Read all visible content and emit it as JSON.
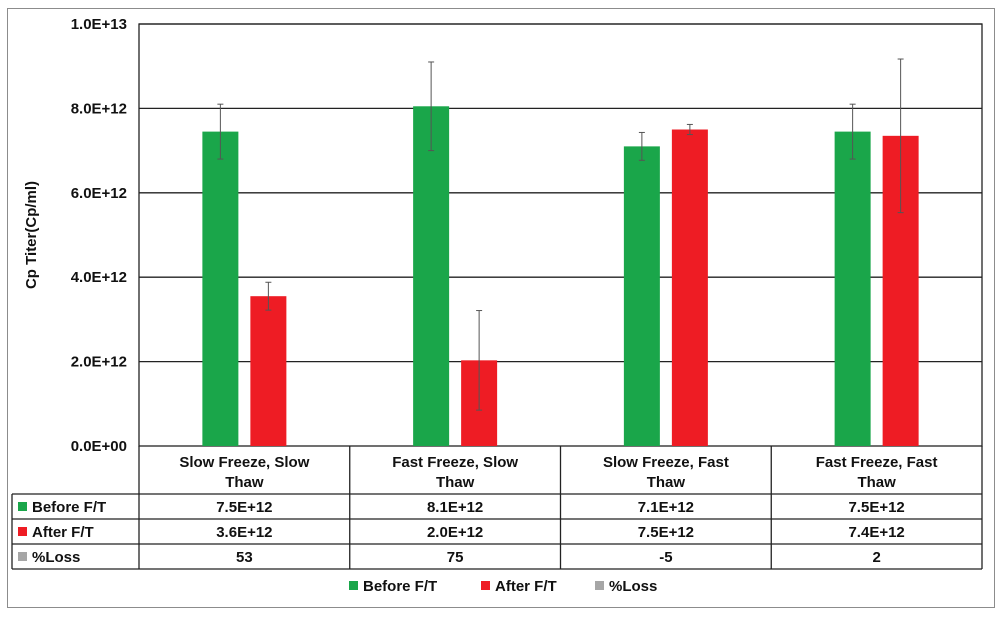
{
  "chart_data": {
    "type": "bar",
    "ylabel": "Cp Titer(Cp/ml)",
    "ylim": [
      0,
      10000000000000
    ],
    "yticks": [
      "0.0E+00",
      "2.0E+12",
      "4.0E+12",
      "6.0E+12",
      "8.0E+12",
      "1.0E+13"
    ],
    "ytick_values": [
      0,
      2000000000000,
      4000000000000,
      6000000000000,
      8000000000000,
      10000000000000
    ],
    "grid": true,
    "legend_position": "bottom",
    "categories": [
      [
        "Slow Freeze, Slow",
        "Thaw"
      ],
      [
        "Fast Freeze, Slow",
        "Thaw"
      ],
      [
        "Slow Freeze, Fast",
        "Thaw"
      ],
      [
        "Fast Freeze, Fast",
        "Thaw"
      ]
    ],
    "series": [
      {
        "name": "Before F/T",
        "color": "#1aa64a",
        "values": [
          7450000000000,
          8050000000000,
          7100000000000,
          7450000000000
        ],
        "errors": [
          650000000000,
          1050000000000,
          330000000000,
          650000000000
        ],
        "labels": [
          "7.5E+12",
          "8.1E+12",
          "7.1E+12",
          "7.5E+12"
        ]
      },
      {
        "name": "After F/T",
        "color": "#ee1c24",
        "values": [
          3550000000000,
          2030000000000,
          7500000000000,
          7350000000000
        ],
        "errors": [
          330000000000,
          1180000000000,
          120000000000,
          1820000000000
        ],
        "labels": [
          "3.6E+12",
          "2.0E+12",
          "7.5E+12",
          "7.4E+12"
        ]
      },
      {
        "name": "%Loss",
        "color": "#a6a6a6",
        "values": [
          53,
          75,
          -5,
          2
        ],
        "labels": [
          "53",
          "75",
          "-5",
          "2"
        ]
      }
    ]
  }
}
